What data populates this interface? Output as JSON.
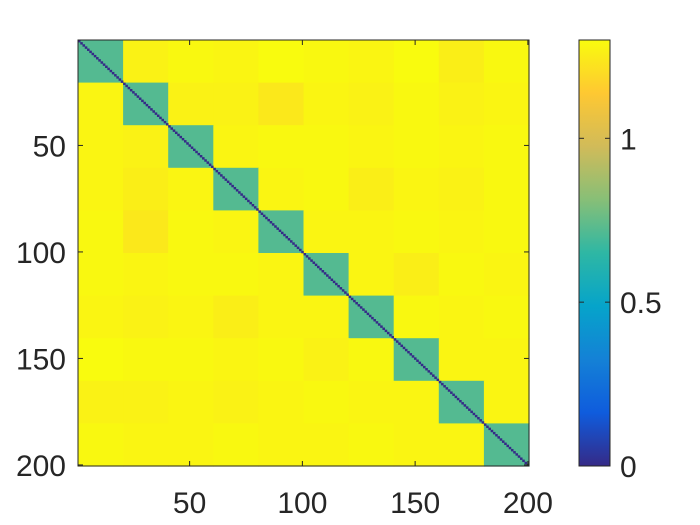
{
  "chart_data": {
    "type": "heatmap",
    "title": "",
    "xlabel": "",
    "ylabel": "",
    "x_range": [
      1,
      200
    ],
    "y_range": [
      1,
      200
    ],
    "y_reversed": true,
    "x_ticks": [
      "50",
      "100",
      "150",
      "200"
    ],
    "x_tick_values": [
      50,
      100,
      150,
      200
    ],
    "y_ticks": [
      "50",
      "100",
      "150",
      "200"
    ],
    "y_tick_values": [
      50,
      100,
      150,
      200
    ],
    "colormap": "parula",
    "colormap_stops": [
      "#352a87",
      "#0f5cdd",
      "#1481d6",
      "#06a4ca",
      "#2eb7a4",
      "#87bf77",
      "#d1bb59",
      "#fec832",
      "#f9fb0e"
    ],
    "color_limits": [
      0,
      1.3
    ],
    "colorbar": {
      "ticks": [
        "0",
        "0.5",
        "1"
      ],
      "tick_values": [
        0,
        0.5,
        1
      ]
    },
    "block_size": 20,
    "n_blocks": 10,
    "diagonal_value": 0,
    "within_block_value": 0.72,
    "block_values": [
      [
        0.72,
        1.27,
        1.29,
        1.28,
        1.3,
        1.29,
        1.28,
        1.3,
        1.26,
        1.29
      ],
      [
        1.28,
        0.72,
        1.27,
        1.27,
        1.24,
        1.28,
        1.27,
        1.29,
        1.27,
        1.28
      ],
      [
        1.28,
        1.27,
        0.72,
        1.28,
        1.29,
        1.29,
        1.28,
        1.29,
        1.28,
        1.29
      ],
      [
        1.28,
        1.26,
        1.28,
        0.72,
        1.28,
        1.29,
        1.26,
        1.28,
        1.27,
        1.29
      ],
      [
        1.29,
        1.24,
        1.29,
        1.28,
        0.72,
        1.28,
        1.28,
        1.29,
        1.28,
        1.29
      ],
      [
        1.29,
        1.28,
        1.29,
        1.29,
        1.28,
        0.72,
        1.28,
        1.26,
        1.29,
        1.28
      ],
      [
        1.28,
        1.27,
        1.28,
        1.26,
        1.28,
        1.28,
        0.72,
        1.29,
        1.28,
        1.29
      ],
      [
        1.3,
        1.29,
        1.29,
        1.28,
        1.29,
        1.27,
        1.29,
        0.72,
        1.28,
        1.28
      ],
      [
        1.27,
        1.27,
        1.28,
        1.27,
        1.28,
        1.29,
        1.28,
        1.28,
        0.72,
        1.28
      ],
      [
        1.29,
        1.28,
        1.28,
        1.29,
        1.28,
        1.28,
        1.29,
        1.28,
        1.28,
        0.72
      ]
    ]
  }
}
